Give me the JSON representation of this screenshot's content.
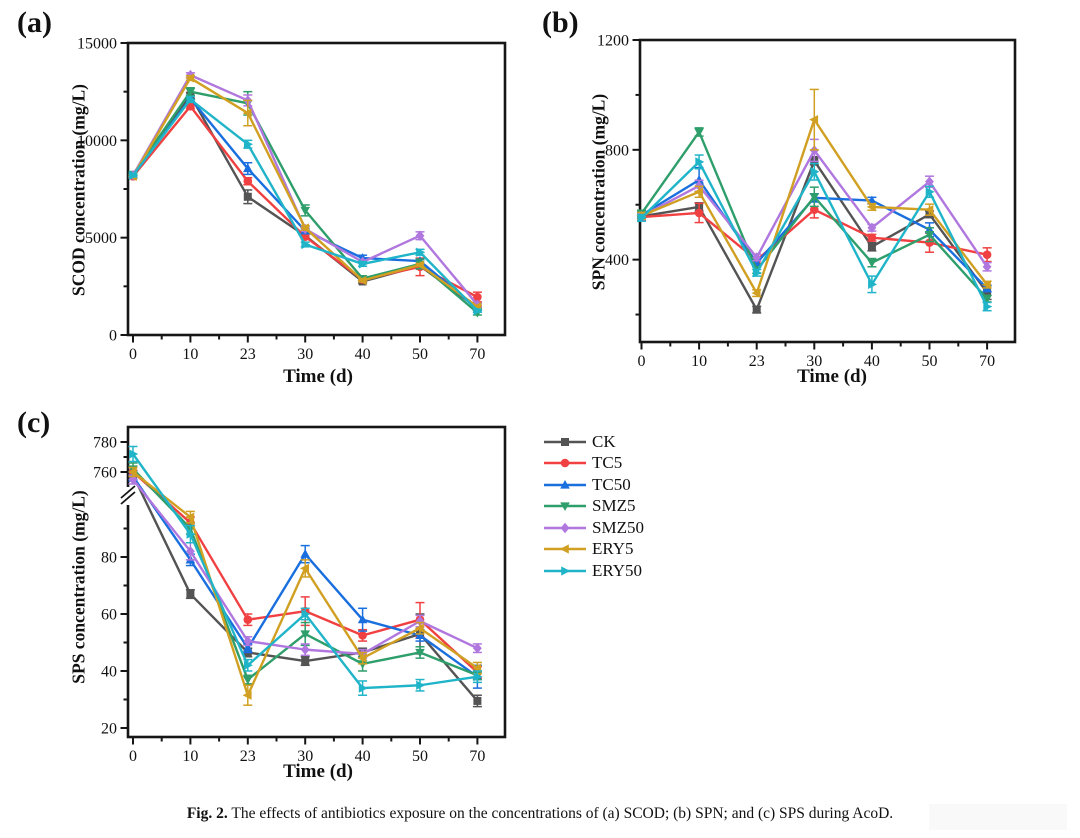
{
  "figure": {
    "caption_prefix": "Fig. 2.",
    "caption_text": "The effects of antibiotics exposure on the concentrations of (a) SCOD; (b) SPN; and (c) SPS during AcoD."
  },
  "legend": {
    "position": "right-middle",
    "items": [
      {
        "label": "CK",
        "color": "#545454",
        "marker": "square"
      },
      {
        "label": "TC5",
        "color": "#F04041",
        "marker": "circle"
      },
      {
        "label": "TC50",
        "color": "#1A6FDF",
        "marker": "triangle-up"
      },
      {
        "label": "SMZ5",
        "color": "#2E9E6B",
        "marker": "triangle-down"
      },
      {
        "label": "SMZ50",
        "color": "#B077DE",
        "marker": "diamond"
      },
      {
        "label": "ERY5",
        "color": "#D1A023",
        "marker": "triangle-left"
      },
      {
        "label": "ERY50",
        "color": "#20B4C9",
        "marker": "triangle-right"
      }
    ]
  },
  "chart_data": [
    {
      "id": "a",
      "type": "line",
      "panel_label": "(a)",
      "xlabel": "Time (d)",
      "ylabel": "SCOD concentration (mg/L)",
      "categories": [
        "0",
        "10",
        "23",
        "30",
        "40",
        "50",
        "70"
      ],
      "ylim": [
        0,
        15000
      ],
      "yticks": [
        0,
        5000,
        10000,
        15000
      ],
      "yminor": [
        2500,
        7500,
        12500
      ],
      "grid": false,
      "legend_position": "none",
      "series": [
        {
          "name": "CK",
          "values": [
            8200,
            12300,
            7100,
            5100,
            2750,
            3550,
            1400
          ],
          "err": [
            80,
            150,
            350,
            120,
            80,
            80,
            100
          ]
        },
        {
          "name": "TC5",
          "values": [
            8150,
            11750,
            7900,
            5050,
            2850,
            3500,
            1950
          ],
          "err": [
            80,
            120,
            180,
            120,
            80,
            450,
            250
          ]
        },
        {
          "name": "TC50",
          "values": [
            8200,
            12150,
            8550,
            5350,
            3950,
            3800,
            1350
          ],
          "err": [
            80,
            150,
            300,
            120,
            150,
            100,
            80
          ]
        },
        {
          "name": "SMZ5",
          "values": [
            8250,
            12500,
            11900,
            6400,
            2900,
            3650,
            1150
          ],
          "err": [
            80,
            200,
            600,
            280,
            80,
            250,
            120
          ]
        },
        {
          "name": "SMZ50",
          "values": [
            8200,
            13350,
            12050,
            5450,
            3750,
            5100,
            1550
          ],
          "err": [
            80,
            120,
            280,
            120,
            80,
            200,
            80
          ]
        },
        {
          "name": "ERY5",
          "values": [
            8150,
            13200,
            11400,
            5500,
            2800,
            3600,
            1450
          ],
          "err": [
            80,
            120,
            650,
            120,
            80,
            80,
            80
          ]
        },
        {
          "name": "ERY50",
          "values": [
            8200,
            12100,
            9800,
            4650,
            3650,
            4250,
            1250
          ],
          "err": [
            80,
            150,
            200,
            120,
            120,
            150,
            80
          ]
        }
      ]
    },
    {
      "id": "b",
      "type": "line",
      "panel_label": "(b)",
      "xlabel": "Time (d)",
      "ylabel": "SPN concentration (mg/L)",
      "categories": [
        "0",
        "10",
        "23",
        "30",
        "40",
        "50",
        "70"
      ],
      "ylim": [
        100,
        1200
      ],
      "yticks": [
        400,
        800,
        1200
      ],
      "yminor": [
        200,
        600,
        1000
      ],
      "grid": false,
      "legend_position": "none",
      "series": [
        {
          "name": "CK",
          "values": [
            558,
            592,
            218,
            760,
            447,
            565,
            280
          ],
          "err": [
            12,
            15,
            12,
            15,
            15,
            12,
            25
          ]
        },
        {
          "name": "TC5",
          "values": [
            555,
            570,
            398,
            582,
            480,
            462,
            418
          ],
          "err": [
            12,
            35,
            12,
            30,
            12,
            35,
            25
          ]
        },
        {
          "name": "TC50",
          "values": [
            562,
            690,
            388,
            625,
            615,
            509,
            295
          ],
          "err": [
            12,
            45,
            12,
            15,
            12,
            25,
            12
          ]
        },
        {
          "name": "SMZ5",
          "values": [
            568,
            865,
            362,
            629,
            389,
            491,
            258
          ],
          "err": [
            12,
            15,
            12,
            35,
            15,
            25,
            12
          ]
        },
        {
          "name": "SMZ50",
          "values": [
            558,
            669,
            408,
            798,
            516,
            684,
            374
          ],
          "err": [
            12,
            20,
            12,
            40,
            12,
            20,
            15
          ]
        },
        {
          "name": "ERY5",
          "values": [
            560,
            647,
            278,
            910,
            592,
            582,
            309
          ],
          "err": [
            12,
            20,
            12,
            110,
            12,
            20,
            12
          ]
        },
        {
          "name": "ERY50",
          "values": [
            552,
            756,
            352,
            720,
            310,
            647,
            229
          ],
          "err": [
            12,
            25,
            12,
            30,
            30,
            20,
            15
          ]
        }
      ]
    },
    {
      "id": "c",
      "type": "line",
      "panel_label": "(c)",
      "xlabel": "Time (d)",
      "ylabel": "SPS concentration (mg/L)",
      "categories": [
        "0",
        "10",
        "23",
        "30",
        "40",
        "50",
        "70"
      ],
      "y_axis_break": true,
      "lower_yticks": [
        20,
        40,
        60,
        80
      ],
      "lower_yminor": [
        30,
        50,
        70,
        90
      ],
      "upper_yticks": [
        760,
        780
      ],
      "upper_yminor": [
        770
      ],
      "grid": false,
      "legend_position": "none",
      "series": [
        {
          "name": "CK",
          "values": [
            758,
            67,
            46.5,
            43.5,
            46.5,
            53,
            29.5
          ],
          "err": [
            3,
            1.5,
            1.5,
            1.5,
            1.5,
            7,
            2
          ]
        },
        {
          "name": "TC5",
          "values": [
            760,
            92,
            58,
            61,
            52.5,
            58,
            39.5
          ],
          "err": [
            3,
            2,
            2,
            5,
            2,
            6,
            2
          ]
        },
        {
          "name": "TC50",
          "values": [
            757,
            79,
            48,
            81,
            58,
            52.5,
            38
          ],
          "err": [
            3,
            2,
            1.5,
            3,
            4,
            2,
            4
          ]
        },
        {
          "name": "SMZ5",
          "values": [
            762,
            90,
            37,
            53,
            42.5,
            46.5,
            38.5
          ],
          "err": [
            4,
            2,
            1.5,
            4,
            2.5,
            2,
            1.5
          ]
        },
        {
          "name": "SMZ50",
          "values": [
            755,
            82,
            50.5,
            47.5,
            46,
            57.5,
            48
          ],
          "err": [
            3,
            3,
            1.5,
            2,
            1.5,
            2,
            1.5
          ]
        },
        {
          "name": "ERY5",
          "values": [
            760,
            94,
            31.5,
            76,
            44.5,
            55,
            41
          ],
          "err": [
            3,
            2,
            3.5,
            3,
            2,
            2,
            2
          ]
        },
        {
          "name": "ERY50",
          "values": [
            772,
            88,
            42,
            60,
            34,
            35,
            38
          ],
          "err": [
            5,
            3,
            2,
            2,
            2.5,
            2,
            2
          ]
        }
      ]
    }
  ]
}
